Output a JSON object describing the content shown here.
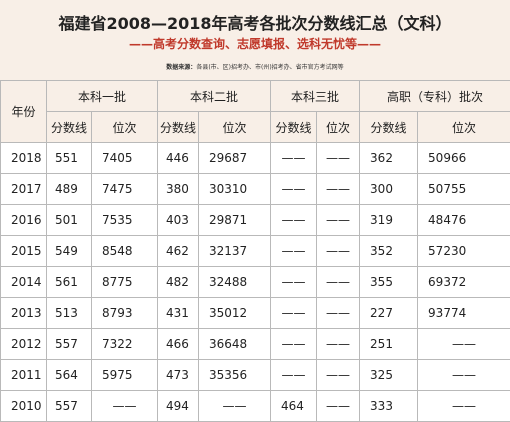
{
  "header": {
    "title": "福建省2008—2018年高考各批次分数线汇总（文科）",
    "subtitle": "——高考分数查询、志愿填报、选科无忧等——",
    "source_label": "数据来源：",
    "source_text": "各县(市、区)招考办、市(州)招考办、省市官方考试网等"
  },
  "table": {
    "year_header": "年份",
    "groups": [
      "本科一批",
      "本科二批",
      "本科三批",
      "高职（专科）批次"
    ],
    "sub_headers": [
      "分数线",
      "位次",
      "分数线",
      "位次",
      "分数线",
      "位次",
      "分数线",
      "位次"
    ],
    "rows": [
      {
        "year": "2018",
        "b1_score": "551",
        "b1_rank": "7405",
        "b2_score": "446",
        "b2_rank": "29687",
        "b3_score": "——",
        "b3_rank": "——",
        "gz_score": "362",
        "gz_rank": "50966"
      },
      {
        "year": "2017",
        "b1_score": "489",
        "b1_rank": "7475",
        "b2_score": "380",
        "b2_rank": "30310",
        "b3_score": "——",
        "b3_rank": "——",
        "gz_score": "300",
        "gz_rank": "50755"
      },
      {
        "year": "2016",
        "b1_score": "501",
        "b1_rank": "7535",
        "b2_score": "403",
        "b2_rank": "29871",
        "b3_score": "——",
        "b3_rank": "——",
        "gz_score": "319",
        "gz_rank": "48476"
      },
      {
        "year": "2015",
        "b1_score": "549",
        "b1_rank": "8548",
        "b2_score": "462",
        "b2_rank": "32137",
        "b3_score": "——",
        "b3_rank": "——",
        "gz_score": "352",
        "gz_rank": "57230"
      },
      {
        "year": "2014",
        "b1_score": "561",
        "b1_rank": "8775",
        "b2_score": "482",
        "b2_rank": "32488",
        "b3_score": "——",
        "b3_rank": "——",
        "gz_score": "355",
        "gz_rank": "69372"
      },
      {
        "year": "2013",
        "b1_score": "513",
        "b1_rank": "8793",
        "b2_score": "431",
        "b2_rank": "35012",
        "b3_score": "——",
        "b3_rank": "——",
        "gz_score": "227",
        "gz_rank": "93774"
      },
      {
        "year": "2012",
        "b1_score": "557",
        "b1_rank": "7322",
        "b2_score": "466",
        "b2_rank": "36648",
        "b3_score": "——",
        "b3_rank": "——",
        "gz_score": "251",
        "gz_rank": "——"
      },
      {
        "year": "2011",
        "b1_score": "564",
        "b1_rank": "5975",
        "b2_score": "473",
        "b2_rank": "35356",
        "b3_score": "——",
        "b3_rank": "——",
        "gz_score": "325",
        "gz_rank": "——"
      },
      {
        "year": "2010",
        "b1_score": "557",
        "b1_rank": "——",
        "b2_score": "494",
        "b2_rank": "——",
        "b3_score": "464",
        "b3_rank": "——",
        "gz_score": "333",
        "gz_rank": "——"
      }
    ]
  }
}
